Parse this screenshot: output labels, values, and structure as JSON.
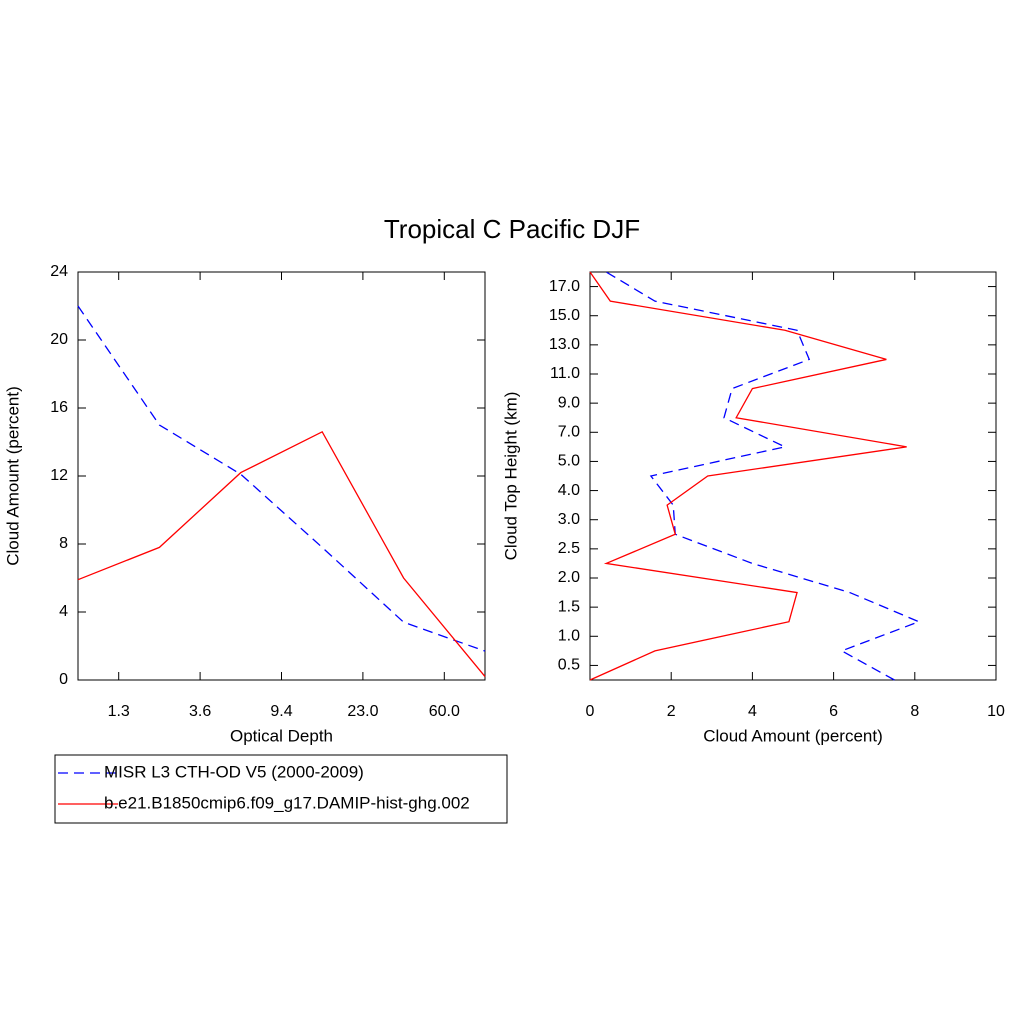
{
  "chart_data": [
    {
      "type": "line",
      "title": "Tropical C Pacific DJF",
      "xlabel": "Optical Depth",
      "ylabel": "Cloud Amount (percent)",
      "x": [
        0,
        1,
        2,
        3,
        4,
        5
      ],
      "xlim": [
        0,
        5
      ],
      "xticks": [
        {
          "value": 0.5,
          "label": "1.3"
        },
        {
          "value": 1.5,
          "label": "3.6"
        },
        {
          "value": 2.5,
          "label": "9.4"
        },
        {
          "value": 3.5,
          "label": "23.0"
        },
        {
          "value": 4.5,
          "label": "60.0"
        }
      ],
      "ylim": [
        0,
        24
      ],
      "yticks": [
        0,
        4,
        8,
        12,
        16,
        20,
        24
      ],
      "legend": "below",
      "series": [
        {
          "name": "MISR L3 CTH-OD V5 (2000-2009)",
          "color": "#0000ff",
          "dashed": true,
          "values": [
            22.0,
            15.0,
            12.1,
            7.8,
            3.4,
            1.7
          ]
        },
        {
          "name": "b.e21.B1850cmip6.f09_g17.DAMIP-hist-ghg.002",
          "color": "#ff0000",
          "dashed": false,
          "values": [
            5.9,
            7.8,
            12.2,
            14.6,
            6.0,
            0.2
          ]
        }
      ]
    },
    {
      "type": "line",
      "orientation": "horizontal",
      "xlabel": "Cloud Amount (percent)",
      "ylabel": "Cloud Top Height (km)",
      "y": [
        0,
        1,
        2,
        3,
        4,
        5,
        6,
        7,
        8,
        9,
        10,
        11,
        12,
        13,
        14
      ],
      "ylim": [
        0,
        14
      ],
      "yticks": [
        {
          "value": 0.5,
          "label": "0.5"
        },
        {
          "value": 1.5,
          "label": "1.0"
        },
        {
          "value": 2.5,
          "label": "1.5"
        },
        {
          "value": 3.5,
          "label": "2.0"
        },
        {
          "value": 4.5,
          "label": "2.5"
        },
        {
          "value": 5.5,
          "label": "3.0"
        },
        {
          "value": 6.5,
          "label": "4.0"
        },
        {
          "value": 7.5,
          "label": "5.0"
        },
        {
          "value": 8.5,
          "label": "7.0"
        },
        {
          "value": 9.5,
          "label": "9.0"
        },
        {
          "value": 10.5,
          "label": "11.0"
        },
        {
          "value": 11.5,
          "label": "13.0"
        },
        {
          "value": 12.5,
          "label": "15.0"
        },
        {
          "value": 13.5,
          "label": "17.0"
        }
      ],
      "xlim": [
        0,
        10
      ],
      "xticks": [
        0,
        2,
        4,
        6,
        8,
        10
      ],
      "series": [
        {
          "color": "#0000ff",
          "dashed": true,
          "values": [
            7.5,
            6.2,
            8.1,
            6.4,
            4.0,
            2.1,
            2.05,
            1.5,
            4.8,
            3.3,
            3.5,
            5.4,
            5.1,
            1.6,
            0.4
          ]
        },
        {
          "color": "#ff0000",
          "dashed": false,
          "values": [
            0,
            1.6,
            4.9,
            5.1,
            0.4,
            2.1,
            1.9,
            2.9,
            7.8,
            3.6,
            4.0,
            7.3,
            4.8,
            0.5,
            0
          ]
        }
      ]
    }
  ]
}
